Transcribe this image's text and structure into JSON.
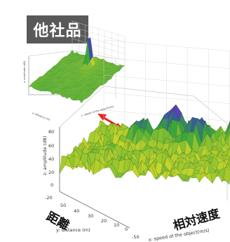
{
  "badge": {
    "label": "他社品"
  },
  "small_plot": {
    "zlabel": "z: amplitude (dB)",
    "ylabel": "y: distance (m)",
    "xlabel": "x: speed of the object(m/s)"
  },
  "main_plot": {
    "zlabel": "z: amplitude (dB)",
    "ylabel": "y: distance (m)",
    "xlabel": "x: speed of the object(m/s)",
    "z_ticks": [
      "80",
      "60",
      "40",
      "20",
      "0",
      "-20"
    ],
    "y_ticks": [
      "50",
      "40",
      "30",
      "20",
      "10",
      "0"
    ],
    "x_ticks": [
      "-50"
    ]
  },
  "annotations": {
    "distance": "距離",
    "relative_speed": "相対速度"
  },
  "colors": {
    "badge_bg": "#595959",
    "arrow": "#e8241f",
    "surface_green": "#3aa83a",
    "surface_yellow": "#c8d62a",
    "surface_blue": "#3d49b8",
    "surface_magenta": "#c0289a"
  }
}
